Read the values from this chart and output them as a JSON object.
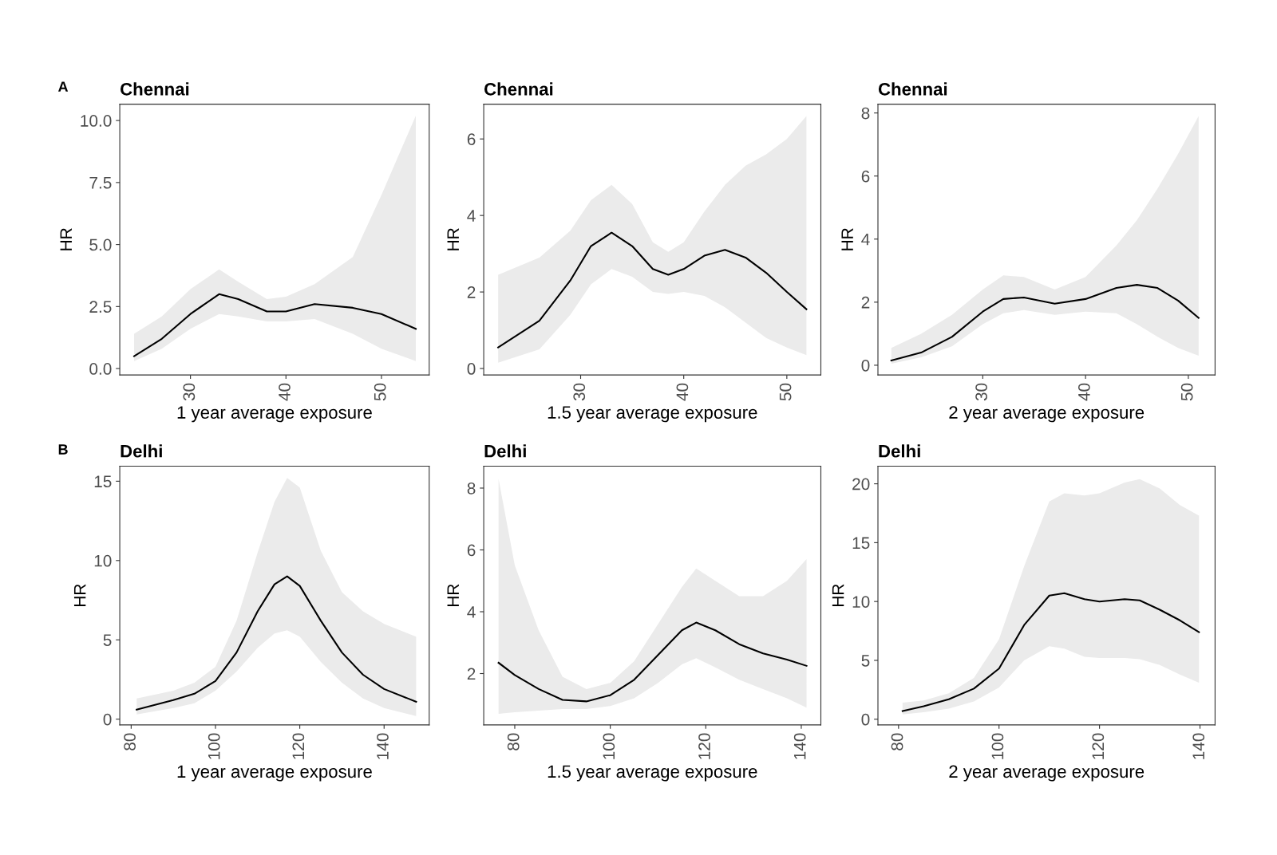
{
  "chart_data": [
    {
      "type": "line",
      "title": "Chennai",
      "xlabel": "1 year average exposure",
      "ylabel": "HR",
      "annotations": [
        "A"
      ],
      "xlim": [
        22.6,
        55.0
      ],
      "ylim": [
        -0.26,
        10.66
      ],
      "xticks": [
        30,
        40,
        50
      ],
      "yticks": [
        {
          "value": 0,
          "label": "0.0"
        },
        2.5,
        {
          "value": 5,
          "label": "5.0"
        },
        7.5,
        {
          "value": 10,
          "label": "10.0"
        }
      ],
      "x": [
        24.1,
        27,
        30,
        33,
        35,
        38,
        40,
        43,
        47,
        50,
        53.6
      ],
      "series": [
        {
          "color": "#000000",
          "values": [
            0.5,
            1.2,
            2.2,
            3.0,
            2.8,
            2.3,
            2.3,
            2.6,
            2.45,
            2.2,
            1.6
          ],
          "lower": [
            0.3,
            0.8,
            1.6,
            2.2,
            2.1,
            1.9,
            1.9,
            2.0,
            1.4,
            0.8,
            0.3
          ],
          "upper": [
            1.4,
            2.1,
            3.2,
            4.0,
            3.5,
            2.8,
            2.9,
            3.4,
            4.5,
            7.0,
            10.2
          ]
        }
      ]
    },
    {
      "type": "line",
      "title": "Chennai",
      "xlabel": "1.5 year average exposure",
      "ylabel": "HR",
      "xlim": [
        20.6,
        53.3
      ],
      "ylim": [
        -0.17,
        6.91
      ],
      "xticks": [
        30,
        40,
        50
      ],
      "yticks": [
        0,
        2,
        4,
        6
      ],
      "x": [
        22,
        26,
        29,
        31,
        33,
        35,
        37,
        38.5,
        40,
        42,
        44,
        46,
        48,
        50,
        51.9
      ],
      "series": [
        {
          "color": "#000000",
          "values": [
            0.55,
            1.25,
            2.3,
            3.2,
            3.55,
            3.2,
            2.6,
            2.45,
            2.6,
            2.95,
            3.1,
            2.9,
            2.5,
            2.0,
            1.55
          ],
          "lower": [
            0.15,
            0.5,
            1.4,
            2.2,
            2.6,
            2.4,
            2.0,
            1.95,
            2.0,
            1.9,
            1.6,
            1.2,
            0.8,
            0.55,
            0.35
          ],
          "upper": [
            2.45,
            2.9,
            3.6,
            4.4,
            4.8,
            4.3,
            3.3,
            3.05,
            3.3,
            4.1,
            4.8,
            5.3,
            5.6,
            6.0,
            6.6
          ]
        }
      ]
    },
    {
      "type": "line",
      "title": "Chennai",
      "xlabel": "2 year average exposure",
      "ylabel": "HR",
      "xlim": [
        19.8,
        52.6
      ],
      "ylim": [
        -0.31,
        8.28
      ],
      "xticks": [
        30,
        40,
        50
      ],
      "yticks": [
        0,
        2,
        4,
        6,
        8
      ],
      "x": [
        21.1,
        24,
        27,
        30,
        32,
        34,
        37,
        40,
        43,
        45,
        47,
        49,
        51
      ],
      "series": [
        {
          "color": "#000000",
          "values": [
            0.15,
            0.4,
            0.9,
            1.7,
            2.1,
            2.15,
            1.95,
            2.1,
            2.45,
            2.55,
            2.45,
            2.05,
            1.5
          ],
          "lower": [
            0.05,
            0.25,
            0.6,
            1.3,
            1.65,
            1.75,
            1.6,
            1.7,
            1.65,
            1.3,
            0.9,
            0.55,
            0.3
          ],
          "upper": [
            0.55,
            1.0,
            1.6,
            2.4,
            2.85,
            2.8,
            2.4,
            2.8,
            3.8,
            4.6,
            5.6,
            6.7,
            7.9
          ]
        }
      ]
    },
    {
      "type": "line",
      "title": "Delhi",
      "xlabel": "1 year average exposure",
      "ylabel": "HR",
      "annotations": [
        "B"
      ],
      "xlim": [
        77.3,
        150.7
      ],
      "ylim": [
        -0.36,
        15.95
      ],
      "xticks": [
        80,
        100,
        120,
        140
      ],
      "yticks": [
        0,
        5,
        10,
        15
      ],
      "x": [
        81.3,
        90,
        95,
        100,
        105,
        110,
        114,
        117,
        120,
        125,
        130,
        135,
        140,
        147.6
      ],
      "series": [
        {
          "color": "#000000",
          "values": [
            0.6,
            1.2,
            1.6,
            2.4,
            4.2,
            6.8,
            8.5,
            9.0,
            8.4,
            6.2,
            4.2,
            2.8,
            1.9,
            1.1
          ],
          "lower": [
            0.3,
            0.7,
            1.0,
            1.8,
            3.0,
            4.5,
            5.4,
            5.6,
            5.2,
            3.6,
            2.3,
            1.3,
            0.7,
            0.2
          ],
          "upper": [
            1.3,
            1.8,
            2.3,
            3.3,
            6.2,
            10.5,
            13.7,
            15.2,
            14.6,
            10.6,
            8.0,
            6.8,
            6.0,
            5.2
          ]
        }
      ]
    },
    {
      "type": "line",
      "title": "Delhi",
      "xlabel": "1.5 year average exposure",
      "ylabel": "HR",
      "xlim": [
        73.5,
        144.1
      ],
      "ylim": [
        0.34,
        8.71
      ],
      "xticks": [
        80,
        100,
        120,
        140
      ],
      "yticks": [
        2,
        4,
        6,
        8
      ],
      "x": [
        76.6,
        80,
        85,
        90,
        95,
        100,
        105,
        110,
        115,
        118,
        122,
        127,
        132,
        137,
        141.1
      ],
      "series": [
        {
          "color": "#000000",
          "values": [
            2.35,
            1.95,
            1.5,
            1.15,
            1.1,
            1.3,
            1.8,
            2.6,
            3.4,
            3.65,
            3.4,
            2.95,
            2.65,
            2.45,
            2.25
          ],
          "lower": [
            0.7,
            0.75,
            0.8,
            0.85,
            0.85,
            0.95,
            1.2,
            1.7,
            2.3,
            2.5,
            2.2,
            1.8,
            1.5,
            1.2,
            0.9
          ],
          "upper": [
            8.3,
            5.5,
            3.4,
            1.9,
            1.5,
            1.7,
            2.4,
            3.6,
            4.8,
            5.4,
            5.0,
            4.5,
            4.5,
            5.0,
            5.7
          ]
        }
      ]
    },
    {
      "type": "line",
      "title": "Delhi",
      "xlabel": "2 year average exposure",
      "ylabel": "HR",
      "xlim": [
        75.9,
        143.0
      ],
      "ylim": [
        -0.48,
        21.5
      ],
      "xticks": [
        80,
        100,
        120,
        140
      ],
      "yticks": [
        0,
        5,
        10,
        15,
        20
      ],
      "x": [
        80.8,
        85,
        90,
        95,
        100,
        105,
        110,
        113,
        117,
        120,
        125,
        128,
        132,
        136,
        139.8
      ],
      "series": [
        {
          "color": "#000000",
          "values": [
            0.7,
            1.1,
            1.7,
            2.6,
            4.3,
            8.0,
            10.5,
            10.7,
            10.2,
            10.0,
            10.2,
            10.1,
            9.3,
            8.4,
            7.4
          ],
          "lower": [
            0.4,
            0.6,
            0.9,
            1.5,
            2.7,
            5.0,
            6.2,
            6.0,
            5.3,
            5.2,
            5.2,
            5.1,
            4.6,
            3.8,
            3.1
          ],
          "upper": [
            1.4,
            1.6,
            2.2,
            3.5,
            6.8,
            13.0,
            18.5,
            19.2,
            19.0,
            19.2,
            20.1,
            20.4,
            19.6,
            18.2,
            17.3
          ]
        }
      ]
    }
  ]
}
